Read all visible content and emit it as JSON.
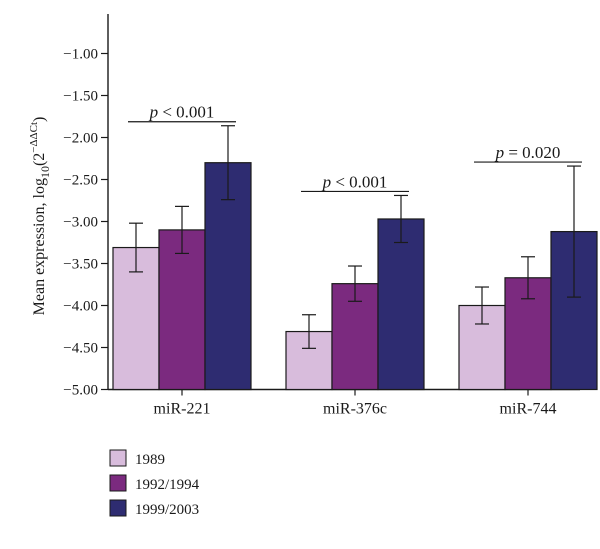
{
  "chart_data": {
    "type": "bar",
    "categories": [
      "miR-221",
      "miR-376c",
      "miR-744"
    ],
    "series": [
      {
        "name": "1989",
        "color": "#d8bcdc",
        "values": [
          -3.31,
          -4.31,
          -4.0
        ],
        "errors": [
          0.29,
          0.2,
          0.22
        ]
      },
      {
        "name": "1992/1994",
        "color": "#7b2a7f",
        "values": [
          -3.1,
          -3.74,
          -3.67
        ],
        "errors": [
          0.28,
          0.21,
          0.25
        ]
      },
      {
        "name": "1999/2003",
        "color": "#2e2c71",
        "values": [
          -2.3,
          -2.97,
          -3.12
        ],
        "errors": [
          0.44,
          0.28,
          0.78
        ]
      }
    ],
    "ylabel": {
      "main": "Mean expression, log",
      "sub": "10",
      "base": "(2",
      "sup": "−ΔΔCt",
      "close": ")"
    },
    "ylim": [
      -5.0,
      -0.75
    ],
    "yticks": [
      -5.0,
      -4.5,
      -4.0,
      -3.5,
      -3.0,
      -2.5,
      -2.0,
      -1.5,
      -1.0
    ],
    "ytick_labels": [
      "−5.00",
      "−4.50",
      "−4.00",
      "−3.50",
      "−3.00",
      "−2.50",
      "−2.00",
      "−1.50",
      "−1.00"
    ],
    "annotations": [
      {
        "category": 0,
        "p": "p",
        "text": " < 0.001"
      },
      {
        "category": 1,
        "p": "p",
        "text": " < 0.001"
      },
      {
        "category": 2,
        "p": "p",
        "text": " = 0.020"
      }
    ],
    "legend_position": "bottom-left",
    "grid": false
  }
}
